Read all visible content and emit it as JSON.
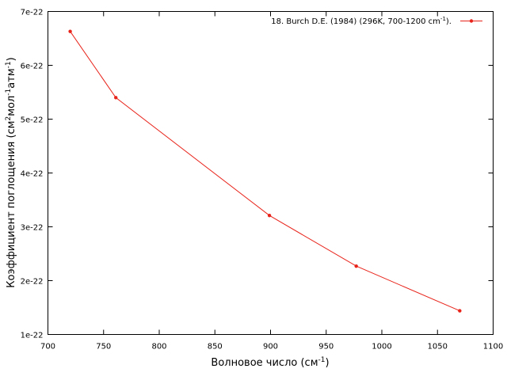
{
  "chart_data": {
    "type": "line",
    "xlabel_main": "Волновое число (см",
    "xlabel_sup": "-1",
    "xlabel_end": ")",
    "ylabel_parts": {
      "p1": "Коэффициент поглощения (см",
      "s1": "2",
      "p2": "мол",
      "s2": "-1",
      "p3": "атм",
      "s3": "-1",
      "p4": ")"
    },
    "xlim": [
      700,
      1100
    ],
    "ylim": [
      1e-22,
      7e-22
    ],
    "x_ticks": [
      "700",
      "750",
      "800",
      "850",
      "900",
      "950",
      "1000",
      "1050",
      "1100"
    ],
    "y_ticks": [
      "1e-22",
      "2e-22",
      "3e-22",
      "4e-22",
      "5e-22",
      "6e-22",
      "7e-22"
    ],
    "legend_position": "top-right",
    "grid": false,
    "series": [
      {
        "name_main": "18. Burch D.E. (1984) (296K, 700-1200 cm",
        "name_sup": "-1",
        "name_end": ").",
        "color": "#e8231a",
        "x": [
          720,
          761,
          899,
          977,
          1070
        ],
        "y": [
          6.63e-22,
          5.4e-22,
          3.21e-22,
          2.27e-22,
          1.44e-22
        ]
      }
    ]
  }
}
